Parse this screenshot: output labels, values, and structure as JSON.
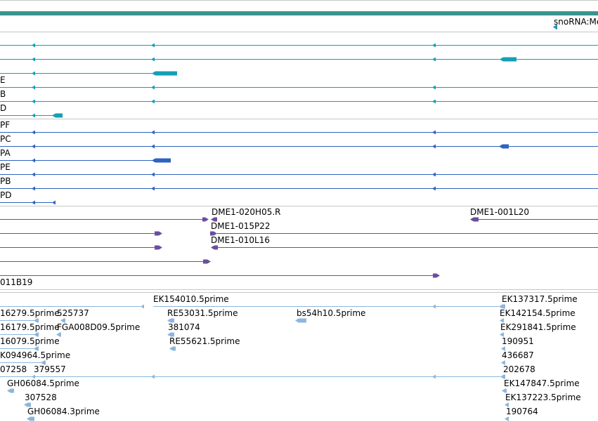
{
  "colors": {
    "top_bar": "#3a948e",
    "snorna": "#2a8ec0",
    "teal": "#13a0b4",
    "blue": "#2e64be",
    "purple": "#6a4ea0",
    "light": "#8cb6dd",
    "divider": "#c6c6c6"
  },
  "track_top": {
    "label": "snoRNA:Me"
  },
  "track_teal": {
    "labels": [
      "E",
      "B",
      "D"
    ]
  },
  "track_blue": {
    "labels": [
      "PF",
      "PC",
      "PA",
      "PE",
      "PB",
      "PD"
    ]
  },
  "track_purple": {
    "labels": [
      "DME1-020H05.R",
      "DME1-001L20",
      "DME1-015P22",
      "DME1-010L16",
      "011B19"
    ]
  },
  "track_est": {
    "labels": [
      "EK154010.5prime",
      "EK137317.5prime",
      "16279.5prime",
      "525737",
      "RE53031.5prime",
      "bs54h10.5prime",
      "EK142154.5prime",
      "16179.5prime",
      "FGA008D09.5prime",
      "381074",
      "EK291841.5prime",
      "16079.5prime",
      "RE55621.5prime",
      "190951",
      "K094964.5prime",
      "436687",
      "07258",
      "379557",
      "202678",
      "GH06084.5prime",
      "EK147847.5prime",
      "307528",
      "EK137223.5prime",
      "GH06084.3prime",
      "190764"
    ]
  }
}
